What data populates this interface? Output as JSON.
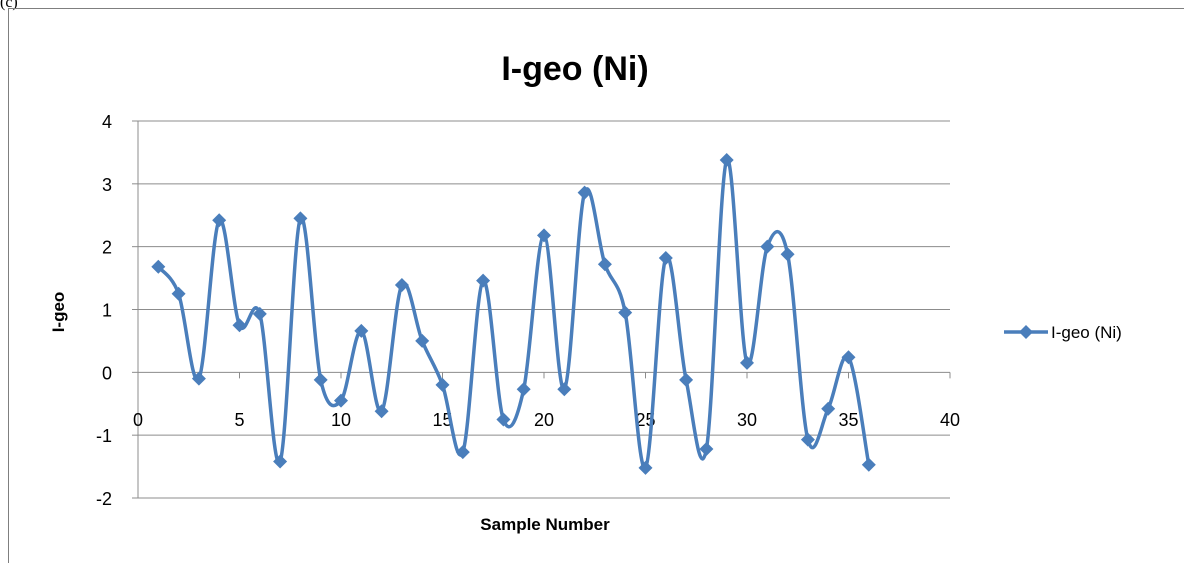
{
  "panel_label": "(c)",
  "chart_data": {
    "type": "line",
    "title": "I-geo (Ni)",
    "xlabel": "Sample Number",
    "ylabel": "I-geo",
    "xlim": [
      0,
      40
    ],
    "ylim": [
      -2,
      4
    ],
    "xticks": [
      0,
      5,
      10,
      15,
      20,
      25,
      30,
      35,
      40
    ],
    "yticks": [
      -2,
      -1,
      0,
      1,
      2,
      3,
      4
    ],
    "grid": "horizontal",
    "smoothed": true,
    "marker": "diamond",
    "legend_position": "right",
    "series_color": "#4a7ebb",
    "series": [
      {
        "name": "I-geo (Ni)",
        "x": [
          1,
          2,
          3,
          4,
          5,
          6,
          7,
          8,
          9,
          10,
          11,
          12,
          13,
          14,
          15,
          16,
          17,
          18,
          19,
          20,
          21,
          22,
          23,
          24,
          25,
          26,
          27,
          28,
          29,
          30,
          31,
          32,
          33,
          34,
          35,
          36
        ],
        "values": [
          1.68,
          1.25,
          -0.1,
          2.42,
          0.75,
          0.93,
          -1.42,
          2.45,
          -0.12,
          -0.45,
          0.66,
          -0.62,
          1.39,
          0.5,
          -0.2,
          -1.27,
          1.46,
          -0.75,
          -0.27,
          2.18,
          -0.27,
          2.86,
          1.72,
          0.95,
          -1.52,
          1.82,
          -0.12,
          -1.22,
          3.38,
          0.15,
          2.0,
          1.88,
          -1.07,
          -0.58,
          0.24,
          -1.47
        ]
      }
    ]
  }
}
